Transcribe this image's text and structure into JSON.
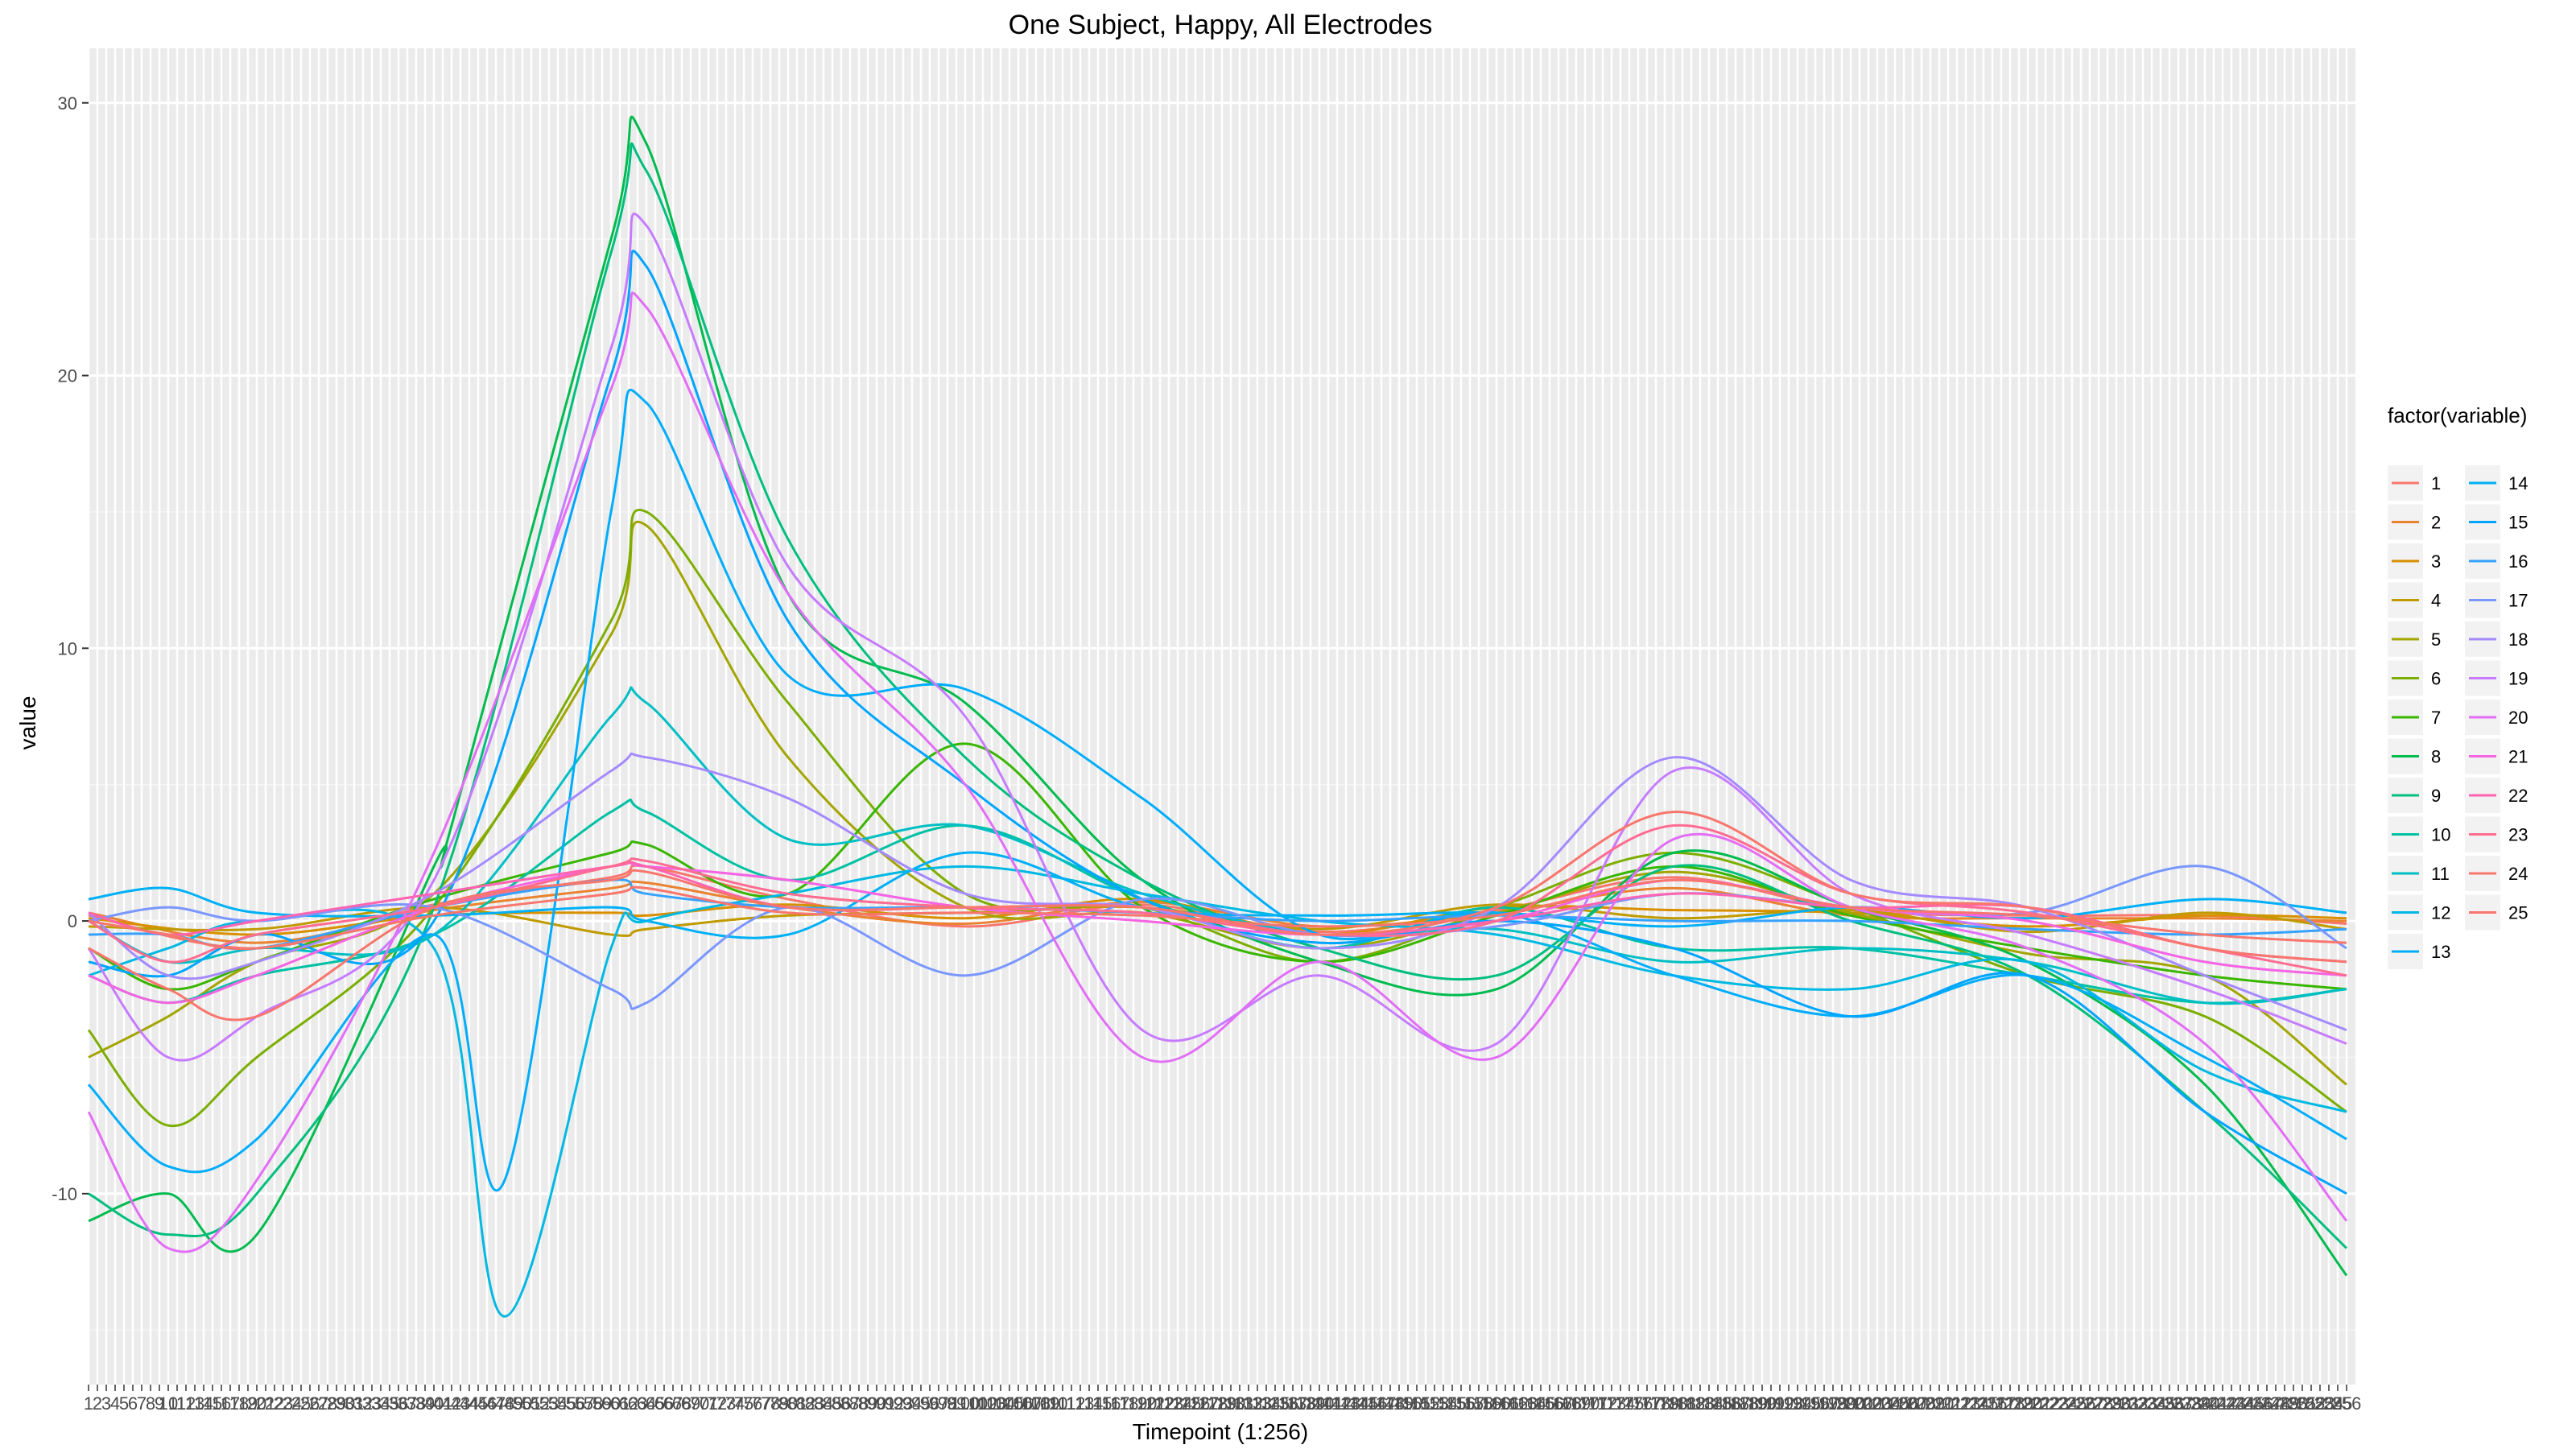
{
  "chart_data": {
    "type": "line",
    "title": "One Subject, Happy, All Electrodes",
    "xlabel": "Timepoint (1:256)",
    "ylabel": "value",
    "xlim": [
      1,
      256
    ],
    "ylim": [
      -17,
      32
    ],
    "y_ticks": [
      -10,
      0,
      10,
      20,
      30
    ],
    "x_ticks": "1..256",
    "grid": true,
    "legend": {
      "title": "factor(variable)",
      "placement": "right",
      "columns": 2
    },
    "series": [
      {
        "name": "1",
        "color": "#F8766D",
        "x": [
          1,
          20,
          40,
          60,
          64,
          80,
          100,
          120,
          140,
          160,
          180,
          200,
          220,
          240,
          256
        ],
        "values": [
          0.2,
          -1.0,
          0.6,
          1.6,
          2.0,
          0.8,
          -0.2,
          0.6,
          -0.4,
          0.4,
          1.6,
          0.4,
          0.2,
          0.2,
          -0.1
        ]
      },
      {
        "name": "2",
        "color": "#EA8331",
        "x": [
          1,
          20,
          40,
          60,
          64,
          80,
          100,
          120,
          140,
          160,
          180,
          200,
          220,
          240,
          256
        ],
        "values": [
          0.3,
          -0.8,
          0.4,
          1.2,
          1.4,
          0.5,
          -0.1,
          0.7,
          -0.2,
          0.3,
          1.2,
          0.2,
          0.1,
          0.1,
          0.0
        ]
      },
      {
        "name": "3",
        "color": "#D89000",
        "x": [
          1,
          20,
          40,
          60,
          64,
          80,
          100,
          120,
          140,
          160,
          180,
          200,
          220,
          240,
          256
        ],
        "values": [
          0.1,
          -0.5,
          0.2,
          0.3,
          0.2,
          0.6,
          0.1,
          0.8,
          -0.5,
          0.5,
          0.4,
          0.3,
          -0.2,
          0.2,
          0.1
        ]
      },
      {
        "name": "4",
        "color": "#C09B00",
        "x": [
          1,
          20,
          40,
          60,
          64,
          80,
          100,
          120,
          140,
          160,
          180,
          200,
          220,
          240,
          256
        ],
        "values": [
          -0.2,
          -0.3,
          0.5,
          -0.5,
          -0.3,
          0.2,
          0.3,
          0.5,
          -0.3,
          0.6,
          0.1,
          0.4,
          -0.4,
          0.3,
          -0.3
        ]
      },
      {
        "name": "5",
        "color": "#A3A500",
        "x": [
          1,
          10,
          20,
          40,
          60,
          64,
          80,
          100,
          120,
          140,
          160,
          180,
          200,
          220,
          240,
          256
        ],
        "values": [
          -5.0,
          -3.5,
          -1.5,
          1.0,
          10.5,
          14.5,
          6.0,
          0.5,
          0.3,
          -1.0,
          0.3,
          1.8,
          0.3,
          -1.2,
          -2.0,
          -6.0
        ]
      },
      {
        "name": "6",
        "color": "#7CAE00",
        "x": [
          1,
          10,
          20,
          40,
          60,
          64,
          80,
          100,
          120,
          140,
          160,
          180,
          200,
          220,
          240,
          256
        ],
        "values": [
          -4.0,
          -7.5,
          -5.0,
          0.5,
          11.0,
          15.0,
          8.0,
          1.0,
          0.5,
          -1.5,
          0.5,
          2.5,
          0.5,
          -2.0,
          -3.5,
          -7.0
        ]
      },
      {
        "name": "7",
        "color": "#39B600",
        "x": [
          1,
          10,
          20,
          40,
          60,
          64,
          80,
          100,
          120,
          140,
          160,
          180,
          200,
          220,
          240,
          256
        ],
        "values": [
          -1.0,
          -2.5,
          -1.5,
          0.8,
          2.5,
          2.8,
          1.0,
          6.5,
          0.5,
          -1.5,
          0.2,
          2.0,
          0.2,
          -1.0,
          -2.0,
          -2.5
        ]
      },
      {
        "name": "8",
        "color": "#00BB4E",
        "x": [
          1,
          10,
          20,
          40,
          42,
          60,
          64,
          80,
          100,
          120,
          140,
          160,
          180,
          200,
          220,
          240,
          256
        ],
        "values": [
          -11.0,
          -10.0,
          -11.5,
          2.0,
          3.5,
          25.0,
          28.5,
          12.0,
          8.0,
          1.5,
          -1.5,
          -2.5,
          2.5,
          0.5,
          -1.5,
          -6.0,
          -13.0
        ]
      },
      {
        "name": "9",
        "color": "#00BF7D",
        "x": [
          1,
          10,
          20,
          40,
          60,
          64,
          80,
          100,
          120,
          140,
          160,
          180,
          200,
          220,
          240,
          256
        ],
        "values": [
          -10.0,
          -11.5,
          -10.0,
          0.5,
          24.5,
          27.5,
          14.0,
          6.0,
          1.5,
          -1.0,
          -2.0,
          2.0,
          0.0,
          -2.0,
          -7.0,
          -12.0
        ]
      },
      {
        "name": "10",
        "color": "#00C1A3",
        "x": [
          1,
          10,
          20,
          40,
          60,
          64,
          80,
          100,
          120,
          140,
          160,
          180,
          200,
          220,
          240,
          256
        ],
        "values": [
          -2.0,
          -3.0,
          -2.0,
          -0.5,
          4.0,
          4.0,
          1.5,
          3.5,
          0.8,
          -1.0,
          0.5,
          -1.0,
          -1.0,
          -2.0,
          -3.0,
          -2.5
        ]
      },
      {
        "name": "11",
        "color": "#00BFC4",
        "x": [
          1,
          10,
          20,
          40,
          60,
          64,
          80,
          100,
          120,
          140,
          160,
          180,
          200,
          220,
          240,
          256
        ],
        "values": [
          0.0,
          -1.5,
          -1.0,
          -0.5,
          7.5,
          8.0,
          3.0,
          3.5,
          1.0,
          -0.5,
          -0.3,
          -1.5,
          -1.0,
          -1.5,
          -3.0,
          -2.5
        ]
      },
      {
        "name": "12",
        "color": "#00B9E3",
        "x": [
          1,
          10,
          20,
          40,
          48,
          60,
          64,
          80,
          100,
          120,
          140,
          160,
          180,
          200,
          220,
          240,
          256
        ],
        "values": [
          -2.0,
          -1.0,
          0.0,
          -1.0,
          -14.5,
          -1.0,
          0.0,
          1.0,
          2.0,
          1.0,
          0.0,
          -0.5,
          -2.0,
          -2.5,
          -1.5,
          -5.5,
          -7.0
        ]
      },
      {
        "name": "13",
        "color": "#00ADFA",
        "x": [
          1,
          10,
          20,
          40,
          48,
          60,
          64,
          80,
          100,
          120,
          140,
          160,
          180,
          200,
          220,
          240,
          256
        ],
        "values": [
          -6.0,
          -9.0,
          -8.0,
          -0.5,
          -9.5,
          15.0,
          19.0,
          9.0,
          8.5,
          4.5,
          -0.5,
          0.3,
          -2.0,
          -3.5,
          -2.0,
          -5.0,
          -8.0
        ]
      },
      {
        "name": "14",
        "color": "#00B0F6",
        "x": [
          1,
          10,
          20,
          40,
          60,
          64,
          80,
          100,
          120,
          140,
          160,
          180,
          200,
          220,
          240,
          256
        ],
        "values": [
          0.8,
          1.2,
          0.3,
          0.2,
          0.5,
          0.0,
          -0.5,
          2.5,
          0.5,
          0.2,
          0.3,
          -0.2,
          0.5,
          0.1,
          0.8,
          0.3
        ]
      },
      {
        "name": "15",
        "color": "#00A5FF",
        "x": [
          1,
          10,
          20,
          40,
          60,
          64,
          80,
          100,
          120,
          140,
          160,
          180,
          200,
          220,
          240,
          256
        ],
        "values": [
          -1.5,
          -2.0,
          -0.5,
          0.0,
          20.0,
          24.0,
          11.0,
          5.0,
          0.8,
          -0.8,
          0.0,
          -1.0,
          -3.5,
          -2.0,
          -7.0,
          -10.0
        ]
      },
      {
        "name": "16",
        "color": "#35A2FF",
        "x": [
          1,
          10,
          20,
          40,
          60,
          64,
          80,
          100,
          120,
          140,
          160,
          180,
          200,
          220,
          240,
          256
        ],
        "values": [
          -0.5,
          -0.5,
          -1.0,
          0.5,
          1.5,
          1.0,
          0.5,
          0.5,
          0.3,
          0.0,
          0.2,
          0.0,
          0.0,
          -0.3,
          -0.5,
          -0.3
        ]
      },
      {
        "name": "17",
        "color": "#7997FF",
        "x": [
          1,
          10,
          20,
          40,
          60,
          64,
          80,
          100,
          120,
          140,
          160,
          180,
          200,
          220,
          240,
          256
        ],
        "values": [
          0.0,
          0.5,
          0.0,
          0.5,
          -2.5,
          -3.0,
          0.5,
          -2.0,
          0.8,
          -0.5,
          -0.2,
          1.0,
          0.5,
          0.3,
          2.0,
          -1.0
        ]
      },
      {
        "name": "18",
        "color": "#A58AFF",
        "x": [
          1,
          10,
          20,
          40,
          60,
          64,
          80,
          100,
          120,
          140,
          160,
          180,
          200,
          220,
          240,
          256
        ],
        "values": [
          0.3,
          -2.0,
          -1.5,
          1.0,
          5.5,
          6.0,
          4.5,
          1.0,
          0.5,
          -1.0,
          0.5,
          6.0,
          1.5,
          0.5,
          -2.0,
          -4.0
        ]
      },
      {
        "name": "19",
        "color": "#C77CFF",
        "x": [
          1,
          10,
          20,
          40,
          60,
          64,
          80,
          100,
          120,
          140,
          160,
          180,
          200,
          220,
          240,
          256
        ],
        "values": [
          -1.0,
          -5.0,
          -3.5,
          1.5,
          21.0,
          25.5,
          13.0,
          7.5,
          -4.0,
          -2.0,
          -4.5,
          5.5,
          1.0,
          -0.5,
          -2.5,
          -4.5
        ]
      },
      {
        "name": "20",
        "color": "#E36EF6",
        "x": [
          1,
          10,
          20,
          40,
          60,
          64,
          80,
          100,
          120,
          140,
          160,
          180,
          200,
          220,
          240,
          256
        ],
        "values": [
          -7.0,
          -12.0,
          -9.5,
          2.5,
          19.5,
          22.5,
          12.0,
          5.0,
          -5.0,
          -1.5,
          -5.0,
          3.0,
          0.5,
          -1.0,
          -4.5,
          -11.0
        ]
      },
      {
        "name": "21",
        "color": "#F564E3",
        "x": [
          1,
          10,
          20,
          40,
          60,
          64,
          80,
          100,
          120,
          140,
          160,
          180,
          200,
          220,
          240,
          256
        ],
        "values": [
          -2.0,
          -3.0,
          -2.0,
          0.5,
          2.0,
          2.0,
          1.5,
          0.5,
          0.0,
          -0.5,
          0.0,
          1.5,
          0.5,
          0.0,
          -1.5,
          -2.0
        ]
      },
      {
        "name": "22",
        "color": "#FF64B0",
        "x": [
          1,
          10,
          20,
          40,
          60,
          64,
          80,
          100,
          120,
          140,
          160,
          180,
          200,
          220,
          240,
          256
        ],
        "values": [
          0.3,
          -0.5,
          0.0,
          1.0,
          2.0,
          2.0,
          0.5,
          0.5,
          0.5,
          -0.5,
          0.0,
          1.0,
          0.5,
          0.5,
          -1.0,
          -1.5
        ]
      },
      {
        "name": "23",
        "color": "#FF6C91",
        "x": [
          1,
          10,
          20,
          40,
          60,
          64,
          80,
          100,
          120,
          140,
          160,
          180,
          200,
          220,
          240,
          256
        ],
        "values": [
          0.0,
          -1.5,
          -0.5,
          0.5,
          2.0,
          2.2,
          1.0,
          0.5,
          0.3,
          -0.5,
          0.0,
          3.5,
          1.0,
          0.3,
          -1.0,
          -2.0
        ]
      },
      {
        "name": "24",
        "color": "#F8766D",
        "x": [
          1,
          10,
          20,
          40,
          60,
          64,
          80,
          100,
          120,
          140,
          160,
          180,
          200,
          220,
          240,
          256
        ],
        "values": [
          -1.0,
          -2.5,
          -3.5,
          0.5,
          1.5,
          1.8,
          0.5,
          0.5,
          0.5,
          -0.5,
          0.5,
          4.0,
          1.0,
          0.5,
          -1.0,
          -1.5
        ]
      },
      {
        "name": "25",
        "color": "#F8766D",
        "x": [
          1,
          10,
          20,
          40,
          60,
          64,
          80,
          100,
          120,
          140,
          160,
          180,
          200,
          220,
          240,
          256
        ],
        "values": [
          0.0,
          -0.5,
          -1.0,
          0.2,
          1.0,
          1.2,
          0.3,
          0.3,
          0.2,
          -0.2,
          0.2,
          1.5,
          0.5,
          0.2,
          -0.5,
          -0.8
        ]
      }
    ]
  }
}
